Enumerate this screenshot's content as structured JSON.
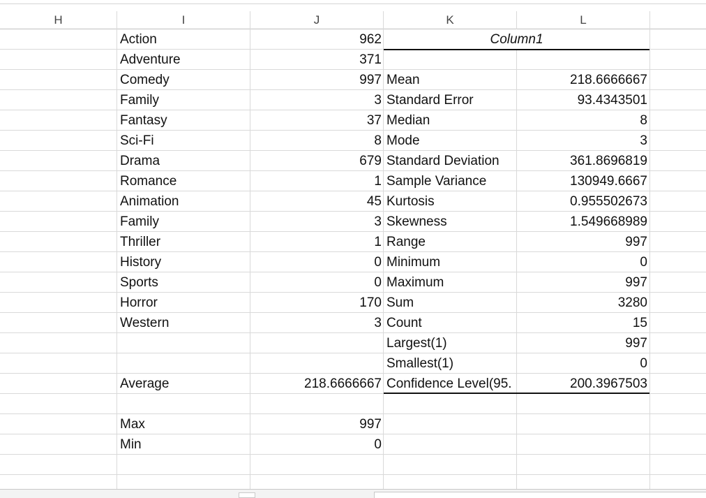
{
  "columns": [
    "H",
    "I",
    "J",
    "K",
    "L"
  ],
  "rows": [
    {
      "i": "Action",
      "j": "962",
      "k": "",
      "l": ""
    },
    {
      "i": "Adventure",
      "j": "371",
      "k": "",
      "l": ""
    },
    {
      "i": "Comedy",
      "j": "997",
      "k": "Mean",
      "l": "218.6666667"
    },
    {
      "i": "Family",
      "j": "3",
      "k": "Standard Error",
      "l": "93.4343501"
    },
    {
      "i": "Fantasy",
      "j": "37",
      "k": "Median",
      "l": "8"
    },
    {
      "i": "Sci-Fi",
      "j": "8",
      "k": "Mode",
      "l": "3"
    },
    {
      "i": "Drama",
      "j": "679",
      "k": "Standard Deviation",
      "l": "361.8696819"
    },
    {
      "i": "Romance",
      "j": "1",
      "k": "Sample Variance",
      "l": "130949.6667"
    },
    {
      "i": "Animation",
      "j": "45",
      "k": "Kurtosis",
      "l": "0.955502673"
    },
    {
      "i": "Family",
      "j": "3",
      "k": "Skewness",
      "l": "1.549668989"
    },
    {
      "i": "Thriller",
      "j": "1",
      "k": "Range",
      "l": "997"
    },
    {
      "i": "History",
      "j": "0",
      "k": "Minimum",
      "l": "0"
    },
    {
      "i": "Sports",
      "j": "0",
      "k": "Maximum",
      "l": "997"
    },
    {
      "i": "Horror",
      "j": "170",
      "k": "Sum",
      "l": "3280"
    },
    {
      "i": "Western",
      "j": "3",
      "k": "Count",
      "l": "15"
    },
    {
      "i": "",
      "j": "",
      "k": "Largest(1)",
      "l": "997"
    },
    {
      "i": "",
      "j": "",
      "k": "Smallest(1)",
      "l": "0"
    },
    {
      "i": "Average",
      "j": "218.6666667",
      "k": "Confidence Level(95.",
      "l": "200.3967503"
    },
    {
      "i": "",
      "j": "",
      "k": "",
      "l": ""
    },
    {
      "i": "Max",
      "j": "997",
      "k": "",
      "l": ""
    },
    {
      "i": "Min",
      "j": "0",
      "k": "",
      "l": ""
    },
    {
      "i": "",
      "j": "",
      "k": "",
      "l": ""
    }
  ],
  "stats_header": "Column1"
}
